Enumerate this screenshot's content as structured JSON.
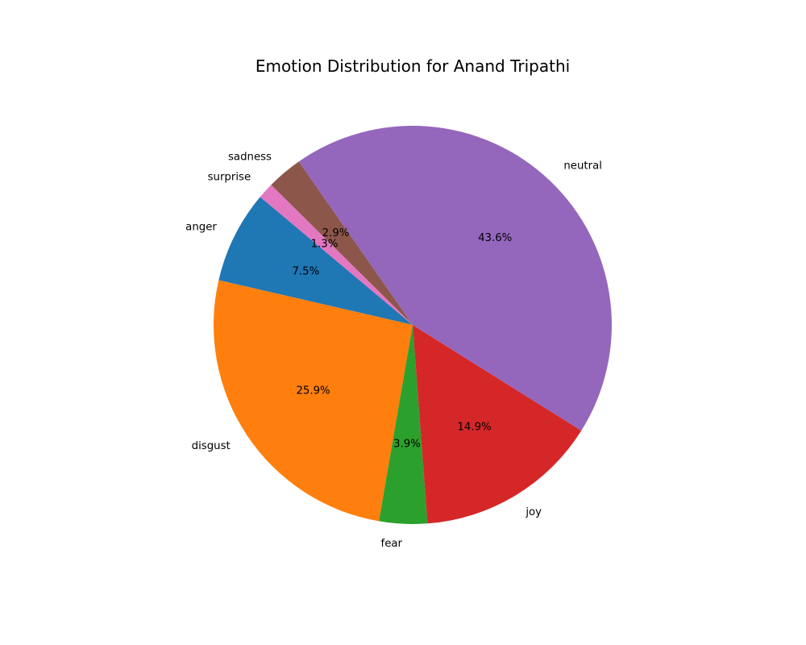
{
  "chart_data": {
    "type": "pie",
    "title": "Emotion Distribution for Anand Tripathi",
    "start_angle_deg": 140,
    "direction": "counterclockwise",
    "slices": [
      {
        "label": "anger",
        "value": 7.5,
        "pct_label": "7.5%",
        "color": "#1f77b4"
      },
      {
        "label": "disgust",
        "value": 25.9,
        "pct_label": "25.9%",
        "color": "#ff7f0e"
      },
      {
        "label": "fear",
        "value": 3.9,
        "pct_label": "3.9%",
        "color": "#2ca02c"
      },
      {
        "label": "joy",
        "value": 14.9,
        "pct_label": "14.9%",
        "color": "#d62728"
      },
      {
        "label": "neutral",
        "value": 43.6,
        "pct_label": "43.6%",
        "color": "#9467bd"
      },
      {
        "label": "sadness",
        "value": 2.9,
        "pct_label": "2.9%",
        "color": "#8c564b"
      },
      {
        "label": "surprise",
        "value": 1.3,
        "pct_label": "1.3%",
        "color": "#e377c2"
      }
    ]
  }
}
